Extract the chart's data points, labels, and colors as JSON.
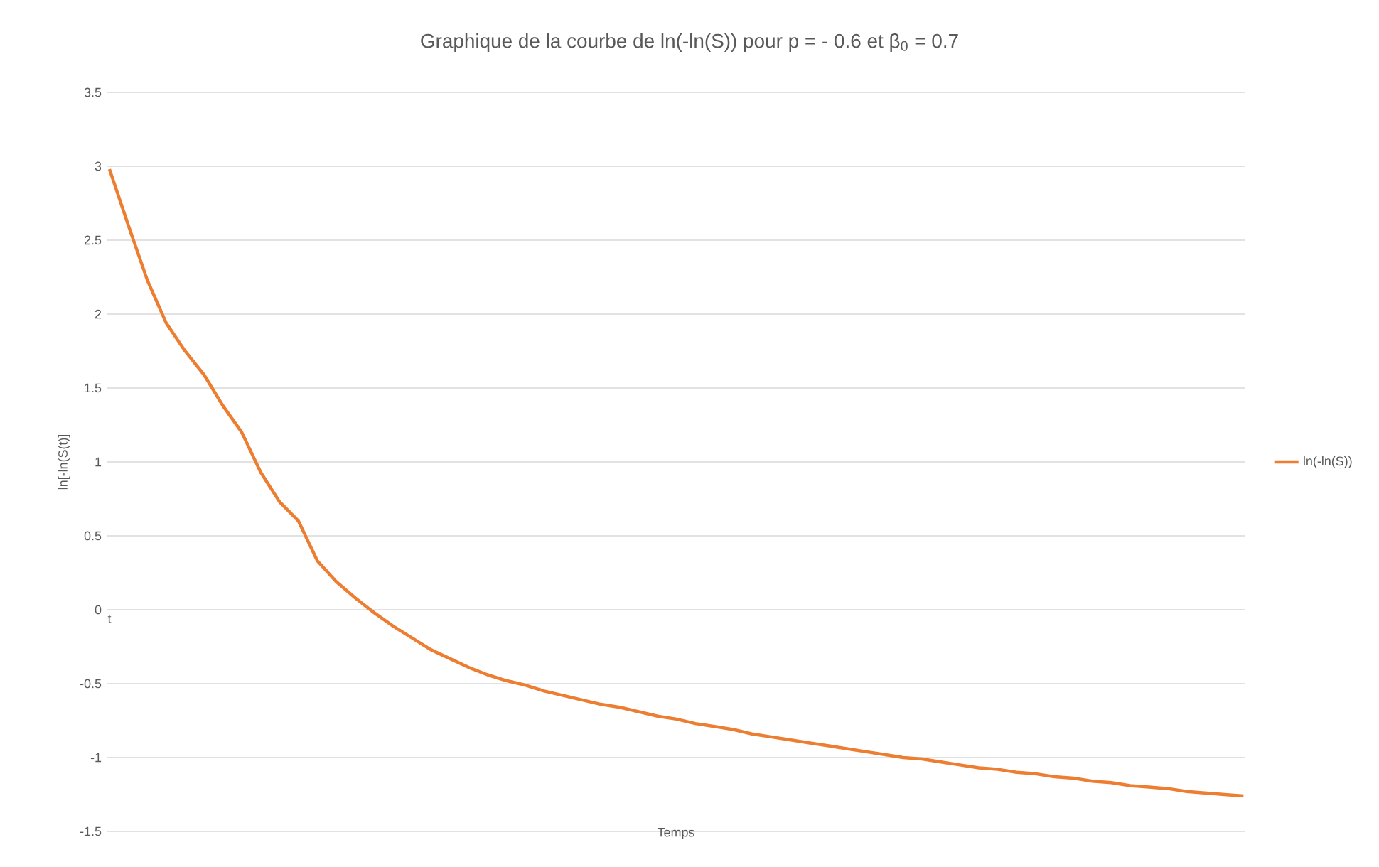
{
  "chart_data": {
    "type": "line",
    "title": "Graphique de la courbe de ln(-ln(S)) pour p = - 0.6 et β$_{0}$ = 0.7",
    "xlabel": "Temps",
    "ylabel": "ln[-ln(S(t)]",
    "categories": [
      "t",
      null,
      null,
      null,
      null,
      null,
      null,
      null,
      null,
      null,
      null,
      null,
      null,
      null,
      null,
      null,
      null,
      null,
      null,
      null,
      null,
      null,
      null,
      null,
      null,
      null,
      null,
      null,
      null,
      null,
      null,
      null,
      null,
      null,
      null,
      null,
      null,
      null,
      null,
      null,
      null,
      null,
      null,
      null,
      null,
      null,
      null,
      null,
      null,
      null,
      null,
      null,
      null,
      null,
      null,
      null,
      null,
      null,
      null,
      null,
      null
    ],
    "series": [
      {
        "name": "ln(-ln(S))",
        "color": "#ed7d31",
        "values": [
          2.98,
          2.6,
          2.23,
          1.94,
          1.75,
          1.59,
          1.38,
          1.2,
          0.93,
          0.73,
          0.6,
          0.33,
          0.19,
          0.08,
          -0.02,
          -0.11,
          -0.19,
          -0.27,
          -0.33,
          -0.39,
          -0.44,
          -0.48,
          -0.51,
          -0.55,
          -0.58,
          -0.61,
          -0.64,
          -0.66,
          -0.69,
          -0.72,
          -0.74,
          -0.77,
          -0.79,
          -0.81,
          -0.84,
          -0.86,
          -0.88,
          -0.9,
          -0.92,
          -0.94,
          -0.96,
          -0.98,
          -1.0,
          -1.01,
          -1.03,
          -1.05,
          -1.07,
          -1.08,
          -1.1,
          -1.11,
          -1.13,
          -1.14,
          -1.16,
          -1.17,
          -1.19,
          -1.2,
          -1.21,
          -1.23,
          -1.24,
          -1.25,
          -1.26
        ]
      }
    ],
    "ylim": [
      -1.5,
      3.5
    ],
    "yticks": [
      -1.5,
      -1,
      -0.5,
      0,
      0.5,
      1,
      1.5,
      2,
      2.5,
      3,
      3.5
    ],
    "grid": "y",
    "legend": "right",
    "marker": "none",
    "line_style": "solid"
  }
}
